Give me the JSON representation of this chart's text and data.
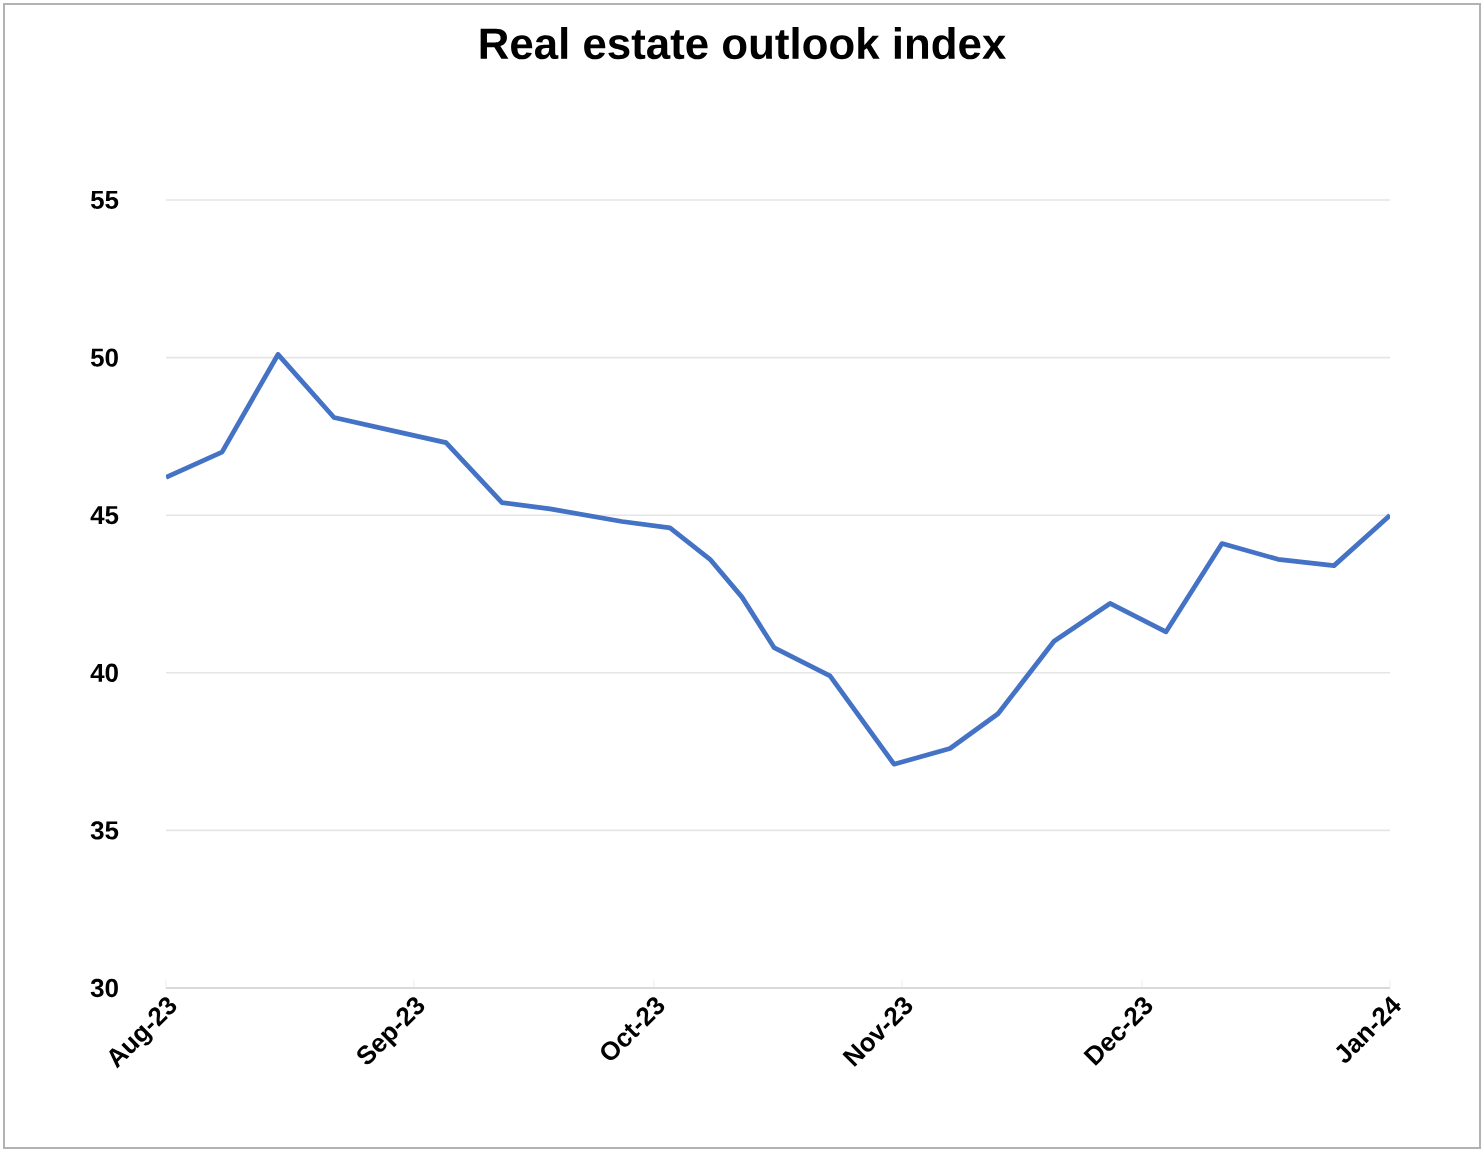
{
  "chart_data": {
    "type": "line",
    "title": "Real estate outlook index",
    "x": [
      "2023-08-01",
      "2023-08-08",
      "2023-08-15",
      "2023-08-22",
      "2023-08-29",
      "2023-09-05",
      "2023-09-12",
      "2023-09-18",
      "2023-09-27",
      "2023-10-03",
      "2023-10-08",
      "2023-10-12",
      "2023-10-16",
      "2023-10-23",
      "2023-10-31",
      "2023-11-07",
      "2023-11-13",
      "2023-11-20",
      "2023-11-27",
      "2023-12-04",
      "2023-12-11",
      "2023-12-18",
      "2023-12-25",
      "2024-01-01"
    ],
    "series": [
      {
        "color": "#4472c4",
        "values": [
          46.2,
          47.0,
          50.1,
          48.1,
          47.7,
          47.3,
          45.4,
          45.2,
          44.8,
          44.6,
          43.6,
          42.4,
          40.8,
          39.9,
          37.1,
          37.6,
          38.7,
          41.0,
          42.2,
          41.3,
          44.1,
          43.6,
          43.4,
          45.0
        ]
      }
    ],
    "xlim": [
      "2023-08-01",
      "2024-01-01"
    ],
    "xticks": [
      {
        "value": "2023-08-01",
        "label": "Aug-23"
      },
      {
        "value": "2023-09-01",
        "label": "Sep-23"
      },
      {
        "value": "2023-10-01",
        "label": "Oct-23"
      },
      {
        "value": "2023-11-01",
        "label": "Nov-23"
      },
      {
        "value": "2023-12-01",
        "label": "Dec-23"
      },
      {
        "value": "2024-01-01",
        "label": "Jan-24"
      }
    ],
    "ylim": [
      30,
      55
    ],
    "yticks": [
      30,
      35,
      40,
      45,
      50,
      55
    ],
    "grid": "y",
    "legend": false,
    "marker": "none",
    "line_style": "solid"
  }
}
